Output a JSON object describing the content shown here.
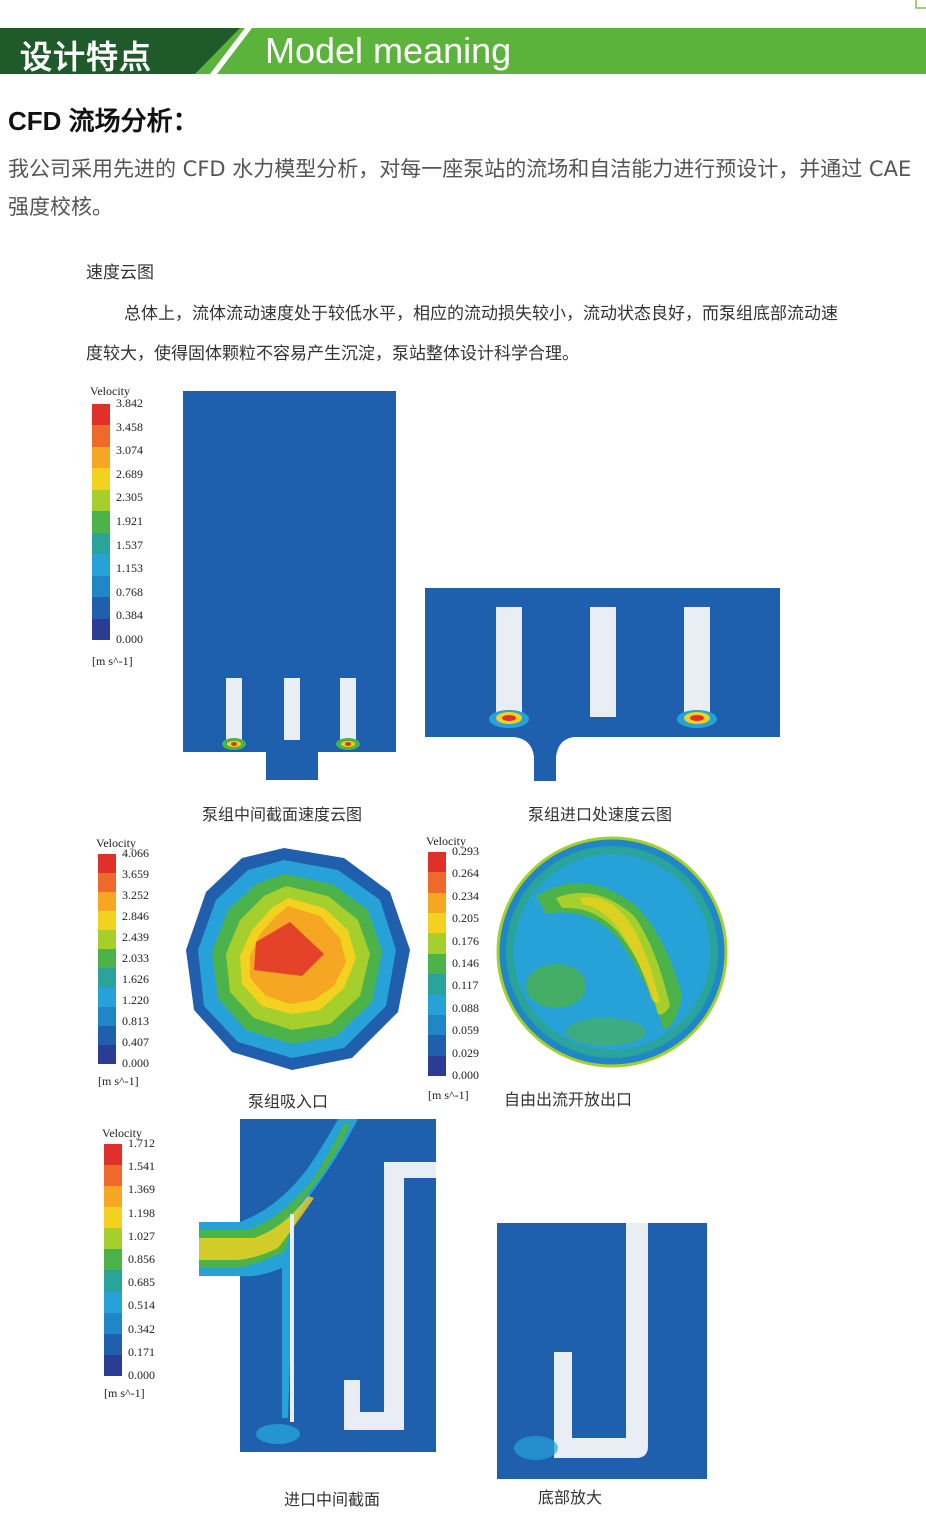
{
  "header": {
    "title_cn": "设计特点",
    "title_en": "Model meaning",
    "dark_color": "#1f5a2a",
    "accent_color": "#5cb33c"
  },
  "section": {
    "title": "CFD 流场分析：",
    "intro": "我公司采用先进的 CFD 水力模型分析，对每一座泵站的流场和自洁能力进行预设计，并通过 CAE 强度校核。"
  },
  "document": {
    "caption": "速度云图",
    "body": "总体上，流体流动速度处于较低水平，相应的流动损失较小，流动状态良好，而泵组底部流动速度较大，使得固体颗粒不容易产生沉淀，泵站整体设计科学合理。"
  },
  "legends": [
    {
      "title": "Velocity",
      "unit": "[m s^-1]",
      "values": [
        "3.842",
        "3.458",
        "3.074",
        "2.689",
        "2.305",
        "1.921",
        "1.537",
        "1.153",
        "0.768",
        "0.384",
        "0.000"
      ]
    },
    {
      "title": "Velocity",
      "unit": "[m s^-1]",
      "values": [
        "4.066",
        "3.659",
        "3.252",
        "2.846",
        "2.439",
        "2.033",
        "1.626",
        "1.220",
        "0.813",
        "0.407",
        "0.000"
      ]
    },
    {
      "title": "Velocity",
      "unit": "[m s^-1]",
      "values": [
        "0.293",
        "0.264",
        "0.234",
        "0.205",
        "0.176",
        "0.146",
        "0.117",
        "0.088",
        "0.059",
        "0.029",
        "0.000"
      ]
    },
    {
      "title": "Velocity",
      "unit": "[m s^-1]",
      "values": [
        "1.712",
        "1.541",
        "1.369",
        "1.198",
        "1.027",
        "0.856",
        "0.685",
        "0.514",
        "0.342",
        "0.171",
        "0.000"
      ]
    }
  ],
  "figures": {
    "fig1_caption": "泵组中间截面速度云图",
    "fig2_caption": "泵组进口处速度云图",
    "fig3_caption": "泵组吸入口",
    "fig4_caption": "自由出流开放出口",
    "fig5_caption": "进口中间截面",
    "fig6_caption": "底部放大"
  },
  "colors": {
    "field_blue": "#1e5fae",
    "pump_white": "#e9eef4",
    "scale": [
      "#e0302a",
      "#ee6a2a",
      "#f5a623",
      "#f3d21f",
      "#a4cf2d",
      "#4cb24a",
      "#2aa39a",
      "#26a2d8",
      "#1f86c8",
      "#1f5fae",
      "#2b3c95"
    ]
  }
}
